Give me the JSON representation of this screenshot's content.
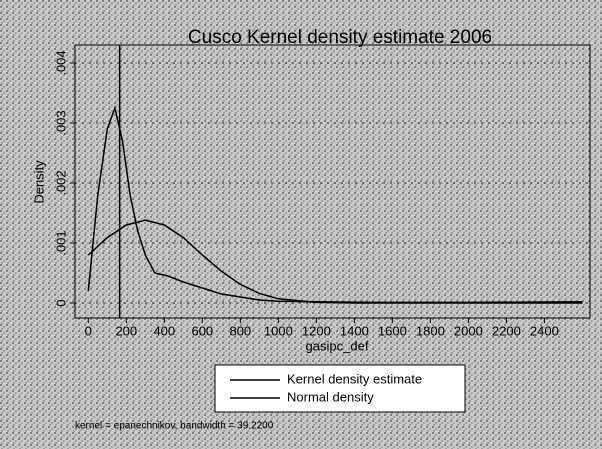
{
  "chart_data": {
    "type": "line",
    "title": "Cusco Kernel density estimate 2006",
    "xlabel": "gasipc_def",
    "ylabel": "Density",
    "note": "kernel = epanechnikov, bandwidth = 39.2200",
    "xlim": [
      -70,
      2640
    ],
    "ylim": [
      -0.00025,
      0.0043
    ],
    "xticks": [
      0,
      200,
      400,
      600,
      800,
      1000,
      1200,
      1400,
      1600,
      1800,
      2000,
      2200,
      2400
    ],
    "yticks": [
      0,
      {
        "value": 0.001,
        "label": ".001"
      },
      {
        "value": 0.002,
        "label": ".002"
      },
      {
        "value": 0.003,
        "label": ".003"
      },
      {
        "value": 0.004,
        "label": ".004"
      }
    ],
    "grid": true,
    "xline": 165,
    "series": [
      {
        "name": "Kernel density estimate",
        "color": "#000000",
        "x": [
          0,
          50,
          100,
          140,
          180,
          220,
          260,
          300,
          350,
          420,
          500,
          600,
          700,
          800,
          900,
          1000,
          1200,
          1500,
          2000,
          2600
        ],
        "values": [
          0.0002,
          0.0018,
          0.0029,
          0.00325,
          0.0027,
          0.0018,
          0.0012,
          0.0008,
          0.0005,
          0.00045,
          0.00035,
          0.00025,
          0.00015,
          0.0001,
          5e-05,
          3e-05,
          2e-05,
          1e-05,
          1e-05,
          2e-05
        ]
      },
      {
        "name": "Normal density",
        "color": "#000000",
        "x": [
          0,
          100,
          200,
          300,
          400,
          500,
          600,
          700,
          800,
          900,
          1000,
          1200,
          1400,
          1600,
          2000,
          2600
        ],
        "values": [
          0.0008,
          0.00109,
          0.0013,
          0.00138,
          0.0013,
          0.00109,
          0.0008,
          0.00053,
          0.00031,
          0.00016,
          7e-05,
          1e-05,
          0,
          0,
          0,
          0
        ]
      }
    ]
  }
}
